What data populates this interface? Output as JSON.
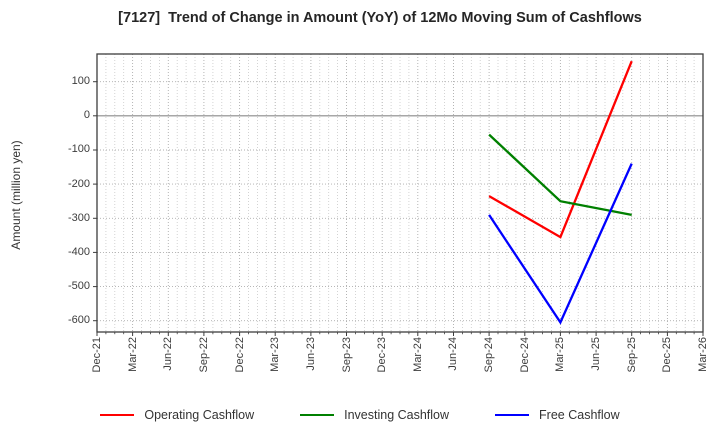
{
  "chart_data": {
    "type": "line",
    "title": "[7127]  Trend of Change in Amount (YoY) of 12Mo Moving Sum of Cashflows",
    "ylabel": "Amount (million yen)",
    "xlabel": "",
    "x_tick_labels": [
      "Dec-21",
      "Mar-22",
      "Jun-22",
      "Sep-22",
      "Dec-22",
      "Mar-23",
      "Jun-23",
      "Sep-23",
      "Dec-23",
      "Mar-24",
      "Jun-24",
      "Sep-24",
      "Dec-24",
      "Mar-25",
      "Jun-25",
      "Sep-25",
      "Dec-25",
      "Mar-26"
    ],
    "y_ticks": [
      100,
      0,
      -100,
      -200,
      -300,
      -400,
      -500,
      -600
    ],
    "ylim": [
      -633,
      181
    ],
    "grid": true,
    "legend_position": "bottom",
    "colors": {
      "grid_minor": "#c9c9c9",
      "grid_major": "#adadad",
      "zero_line": "#8a8a8a",
      "axis_border": "#3d3d3d",
      "text": "#333333"
    },
    "series": [
      {
        "name": "Operating Cashflow",
        "color": "#ff0000",
        "points": [
          {
            "x": "Sep-24",
            "y": -235
          },
          {
            "x": "Mar-25",
            "y": -355
          },
          {
            "x": "Sep-25",
            "y": 160
          }
        ]
      },
      {
        "name": "Investing Cashflow",
        "color": "#008000",
        "points": [
          {
            "x": "Sep-24",
            "y": -55
          },
          {
            "x": "Mar-25",
            "y": -250
          },
          {
            "x": "Sep-25",
            "y": -290
          }
        ]
      },
      {
        "name": "Free Cashflow",
        "color": "#0000ff",
        "points": [
          {
            "x": "Sep-24",
            "y": -290
          },
          {
            "x": "Mar-25",
            "y": -605
          },
          {
            "x": "Sep-25",
            "y": -140
          }
        ]
      }
    ]
  }
}
